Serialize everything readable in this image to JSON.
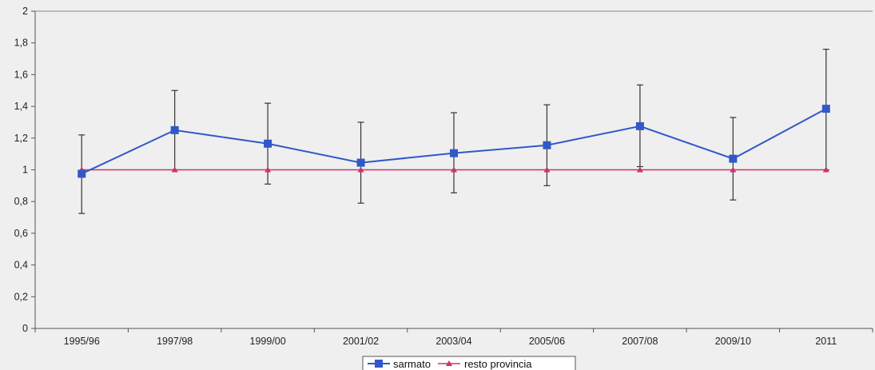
{
  "chart_data": {
    "type": "line",
    "categories": [
      "1995/96",
      "1997/98",
      "1999/00",
      "2001/02",
      "2003/04",
      "2005/06",
      "2007/08",
      "2009/10",
      "2011"
    ],
    "series": [
      {
        "name": "sarmato",
        "color": "#3058c8",
        "marker": "square",
        "values": [
          0.975,
          1.25,
          1.165,
          1.045,
          1.105,
          1.155,
          1.275,
          1.07,
          1.385
        ],
        "error_low": [
          0.725,
          1.0,
          0.91,
          0.79,
          0.855,
          0.9,
          1.02,
          0.81,
          1.0
        ],
        "error_high": [
          1.22,
          1.5,
          1.42,
          1.3,
          1.36,
          1.41,
          1.535,
          1.33,
          1.76
        ]
      },
      {
        "name": "resto provincia",
        "color": "#d0306a",
        "marker": "triangle",
        "values": [
          1,
          1,
          1,
          1,
          1,
          1,
          1,
          1,
          1
        ]
      }
    ],
    "ylim": [
      0,
      2
    ],
    "yticks": [
      "0",
      "0,2",
      "0,4",
      "0,6",
      "0,8",
      "1",
      "1,2",
      "1,4",
      "1,6",
      "1,8",
      "2"
    ],
    "grid": false,
    "legend_position": "bottom-center",
    "title": "",
    "xlabel": "",
    "ylabel": ""
  }
}
